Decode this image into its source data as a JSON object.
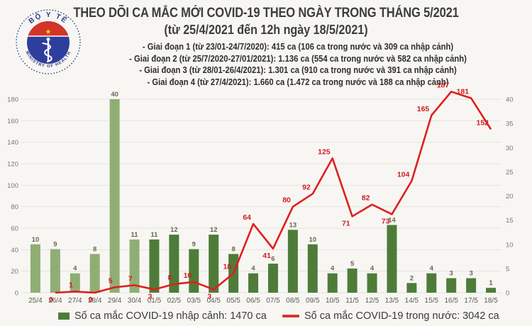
{
  "header": {
    "title_line1": "THEO DÕI CA MẮC MỚI COVID-19 THEO NGÀY TRONG THÁNG 5/2021",
    "title_line2": "(từ 25/4/2021 đến 12h ngày 18/5/2021)",
    "bullets": [
      "- Giai đoạn 1 (từ 23/01-24/7/2020): 415 ca (106 ca trong nước và 309 ca nhập cảnh)",
      "- Giai đoạn 2 (từ 25/7/2020-27/01/2021): 1.136 ca (554 ca trong nước và 582 ca nhập cảnh)",
      "- Giai đoạn 3 (từ 28/01-26/4/2021): 1.301 ca (910 ca trong nước và 391 ca nhập cảnh)",
      "- Giai đoạn 4 (từ 27/4/2021): 1.660 ca (1.472 ca trong nước và 188 ca nhập cảnh)"
    ]
  },
  "logo": {
    "top_text": "BỘ Y TẾ",
    "bottom_text": "MINISTRY OF HEALTH",
    "star": "★"
  },
  "chart_data": {
    "type": "bar+line",
    "categories": [
      "25/4",
      "26/4",
      "27/4",
      "28/4",
      "29/4",
      "30/4",
      "01/5",
      "02/5",
      "03/5",
      "04/5",
      "05/5",
      "06/5",
      "07/5",
      "08/5",
      "09/5",
      "10/5",
      "11/5",
      "12/5",
      "13/5",
      "14/5",
      "15/5",
      "16/5",
      "17/5",
      "18/5"
    ],
    "bar_series": {
      "name": "Số ca mắc COVID-19 nhập cảnh",
      "axis": "right",
      "values": [
        10,
        9,
        4,
        8,
        40,
        11,
        11,
        12,
        9,
        12,
        8,
        4,
        6,
        13,
        10,
        4,
        5,
        4,
        14,
        2,
        4,
        3,
        3,
        1
      ],
      "color_april": "#8fae74",
      "color_may": "#4e7c38"
    },
    "line_series": {
      "name": "Số ca mắc COVID-19 trong nước",
      "axis": "left",
      "values": [
        null,
        0,
        1,
        0,
        5,
        7,
        3,
        8,
        10,
        3,
        18,
        64,
        41,
        80,
        92,
        125,
        71,
        82,
        73,
        104,
        165,
        187,
        181,
        152
      ],
      "color": "#e01e1e"
    },
    "left_axis": {
      "min": 0,
      "max": 180,
      "step": 20
    },
    "right_axis": {
      "min": 0,
      "max": 40,
      "step": 5
    },
    "grid": true,
    "legend_position": "bottom"
  },
  "legend": [
    {
      "label": "Số ca mắc COVID-19 nhập cảnh: 1470 ca",
      "color": "#4e7c38",
      "swatch": "square"
    },
    {
      "label": "Số ca mắc COVID-19 trong nước: 3042 ca",
      "color": "#e01e1e",
      "swatch": "line"
    }
  ],
  "colors": {
    "background": "#f7f6f3",
    "gridline": "#e6e4e0",
    "bar_april": "#8fae74",
    "bar_may": "#4e7c38",
    "line_red": "#e01e1e",
    "line_label_red": "#cf1e1e",
    "title_text": "#3d3d3d",
    "axis_text": "#7a786f",
    "bar_label_text": "#67674e",
    "legend_text": "#3a3a3a",
    "logo_navy": "#2c3a8c",
    "logo_red": "#d43327",
    "logo_star_yellow": "#f9d616"
  }
}
